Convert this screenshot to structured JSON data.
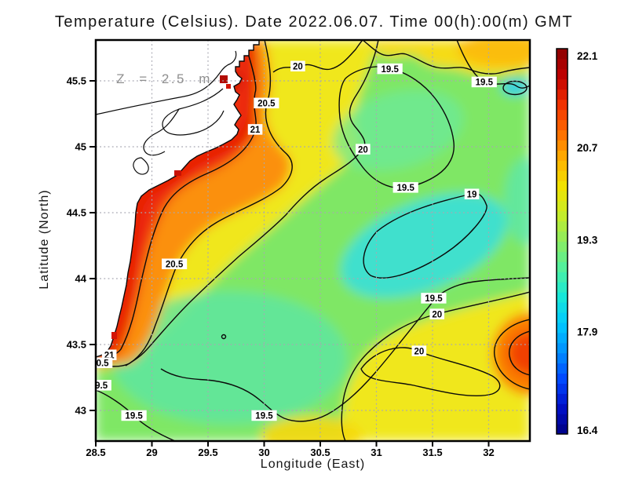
{
  "page": {
    "background": "#ffffff"
  },
  "chart_data": {
    "type": "heatmap",
    "variant": "filled-contour-map-with-colorbar",
    "title": "Temperature (Celsius). Date 2022.06.07. Time 00(h):00(m) GMT",
    "annotation": "Z = 2.5 m",
    "xlabel": "Longitude (East)",
    "ylabel": "Latitude (North)",
    "xlim": [
      28.5,
      32.36
    ],
    "ylim": [
      42.77,
      45.81
    ],
    "x_ticks": [
      28.5,
      29,
      29.5,
      30,
      30.5,
      31,
      31.5,
      32
    ],
    "x_tick_labels": [
      "28.5",
      "29",
      "29.5",
      "30",
      "30.5",
      "31",
      "31.5",
      "32"
    ],
    "y_ticks": [
      45.5,
      45,
      44.5,
      44,
      43.5,
      43
    ],
    "y_tick_labels": [
      "45.5",
      "45",
      "44.5",
      "44",
      "43.5",
      "43"
    ],
    "grid": true,
    "contour_levels": [
      19,
      19.5,
      20,
      20.5,
      21
    ],
    "contour_labels": [
      {
        "text": "20",
        "lon": 30.3,
        "lat": 45.61
      },
      {
        "text": "19.5",
        "lon": 31.12,
        "lat": 45.59
      },
      {
        "text": "19.5",
        "lon": 31.96,
        "lat": 45.49
      },
      {
        "text": "20.5",
        "lon": 30.02,
        "lat": 45.33
      },
      {
        "text": "21",
        "lon": 29.92,
        "lat": 45.13
      },
      {
        "text": "20",
        "lon": 30.88,
        "lat": 44.98
      },
      {
        "text": "19.5",
        "lon": 31.26,
        "lat": 44.69
      },
      {
        "text": "19",
        "lon": 31.85,
        "lat": 44.64
      },
      {
        "text": "20.5",
        "lon": 29.2,
        "lat": 44.11
      },
      {
        "text": "19.5",
        "lon": 31.51,
        "lat": 43.85
      },
      {
        "text": "20",
        "lon": 31.54,
        "lat": 43.73
      },
      {
        "text": "20",
        "lon": 31.38,
        "lat": 43.45
      },
      {
        "text": "21",
        "lon": 28.62,
        "lat": 43.42
      },
      {
        "text": "0.5",
        "lon": 28.56,
        "lat": 43.36
      },
      {
        "text": "9.5",
        "lon": 28.55,
        "lat": 43.19
      },
      {
        "text": "19.5",
        "lon": 28.84,
        "lat": 42.96
      },
      {
        "text": "19.5",
        "lon": 30.0,
        "lat": 42.96
      }
    ],
    "colorbar": {
      "min": 16.4,
      "max": 22.1,
      "tick_labels": [
        "22.1",
        "20.7",
        "19.3",
        "17.9",
        "16.4"
      ],
      "tick_values": [
        22.1,
        20.7,
        19.3,
        17.9,
        16.4
      ],
      "steps": 38,
      "colors_bottom_to_top": [
        "#000082",
        "#0010c8",
        "#0048ff",
        "#0090ff",
        "#00c8ff",
        "#18e8d8",
        "#50f0a0",
        "#8cec60",
        "#c8ec28",
        "#f2e200",
        "#ffb000",
        "#ff6a00",
        "#f03000",
        "#c00000",
        "#8a0000"
      ]
    },
    "land_color": "#ffffff",
    "sea_base_color": "#7fe765",
    "coast_hot_color": "#e51806",
    "grid_color": "#a8a8b2"
  }
}
